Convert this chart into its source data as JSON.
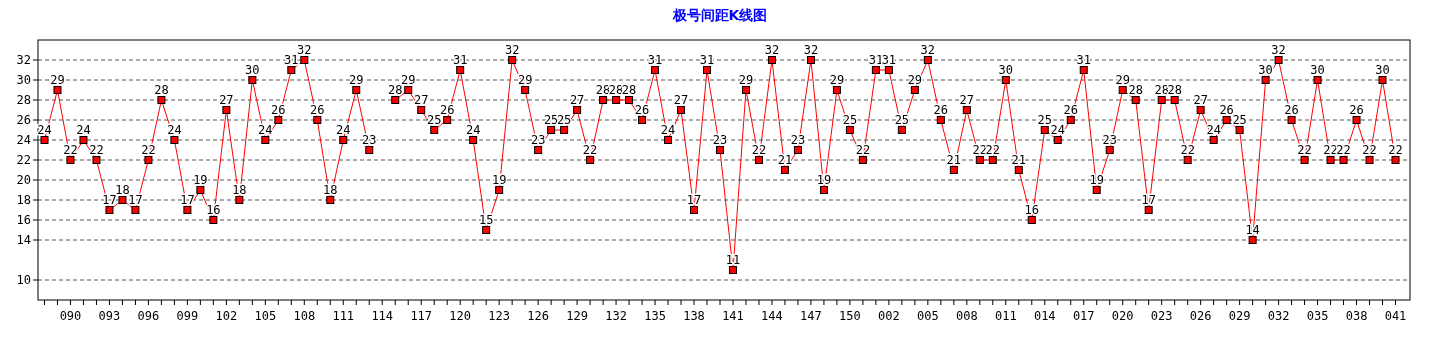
{
  "chart_data": {
    "type": "line",
    "title": "极号间距K线图",
    "categories": [
      null,
      null,
      "090",
      null,
      null,
      "093",
      null,
      null,
      "096",
      null,
      null,
      "099",
      null,
      null,
      "102",
      null,
      null,
      "105",
      null,
      null,
      "108",
      null,
      null,
      "111",
      null,
      null,
      "114",
      null,
      null,
      "117",
      null,
      null,
      "120",
      null,
      null,
      "123",
      null,
      null,
      "126",
      null,
      null,
      "129",
      null,
      null,
      "132",
      null,
      null,
      "135",
      null,
      null,
      "138",
      null,
      null,
      "141",
      null,
      null,
      "144",
      null,
      null,
      "147",
      null,
      null,
      "150",
      null,
      null,
      "002",
      null,
      null,
      "005",
      null,
      null,
      "008",
      null,
      null,
      "011",
      null,
      null,
      "014",
      null,
      null,
      "017",
      null,
      null,
      "020",
      null,
      null,
      "023",
      null,
      null,
      "026",
      null,
      null,
      "029",
      null,
      null,
      "032",
      null,
      null,
      "035",
      null,
      null,
      "038",
      null,
      null,
      "041"
    ],
    "values": [
      24,
      29,
      22,
      24,
      22,
      17,
      18,
      17,
      22,
      28,
      24,
      17,
      19,
      16,
      27,
      18,
      30,
      24,
      26,
      31,
      32,
      26,
      18,
      24,
      29,
      23,
      null,
      28,
      29,
      27,
      25,
      26,
      31,
      24,
      15,
      19,
      32,
      29,
      23,
      25,
      25,
      27,
      22,
      28,
      28,
      28,
      26,
      31,
      24,
      27,
      17,
      31,
      23,
      11,
      29,
      22,
      32,
      21,
      23,
      32,
      19,
      29,
      25,
      22,
      31,
      31,
      25,
      29,
      32,
      26,
      21,
      27,
      22,
      22,
      30,
      21,
      16,
      25,
      24,
      26,
      31,
      19,
      23,
      29,
      28,
      17,
      28,
      28,
      22,
      27,
      24,
      26,
      25,
      14,
      30,
      32,
      26,
      22,
      30,
      22,
      22,
      26,
      22,
      30,
      22
    ],
    "color": "#ff0000",
    "marker": "square",
    "data_labels": true,
    "grid": "y",
    "ylim": [
      8,
      34
    ],
    "yticks": [
      10,
      14,
      16,
      18,
      20,
      22,
      24,
      26,
      28,
      30,
      32
    ]
  }
}
